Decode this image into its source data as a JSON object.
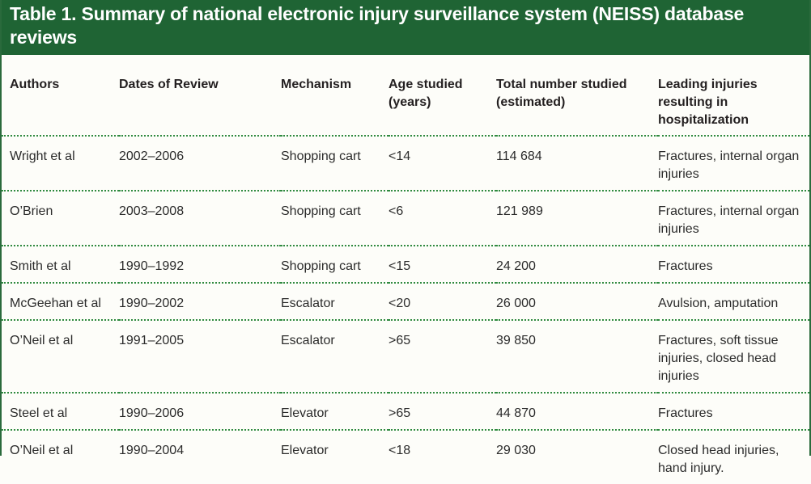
{
  "title": "Table 1. Summary of national electronic injury surveillance system (NEISS) database reviews",
  "columns": [
    "Authors",
    "Dates of Review",
    "Mechanism",
    "Age studied (years)",
    "Total number studied (estimated)",
    "Leading injuries resulting in hospitalization"
  ],
  "rows": [
    [
      "Wright et al",
      "2002–2006",
      "Shopping cart",
      "<14",
      "114 684",
      "Fractures, internal organ injuries"
    ],
    [
      "O’Brien",
      "2003–2008",
      "Shopping cart",
      "<6",
      "121 989",
      "Fractures, internal organ injuries"
    ],
    [
      "Smith et al",
      "1990–1992",
      "Shopping cart",
      "<15",
      "24 200",
      "Fractures"
    ],
    [
      "McGeehan et al",
      "1990–2002",
      "Escalator",
      "<20",
      "26 000",
      "Avulsion, amputation"
    ],
    [
      "O’Neil et al",
      "1991–2005",
      "Escalator",
      ">65",
      "39 850",
      "Fractures, soft tissue injuries, closed head injuries"
    ],
    [
      "Steel et al",
      "1990–2006",
      "Elevator",
      ">65",
      "44 870",
      "Fractures"
    ],
    [
      "O’Neil et al",
      "1990–2004",
      "Elevator",
      "<18",
      "29 030",
      "Closed head injuries, hand injury."
    ]
  ],
  "colors": {
    "title_background": "#1f6434",
    "title_text": "#ffffff",
    "rule": "#2f8a3f"
  }
}
